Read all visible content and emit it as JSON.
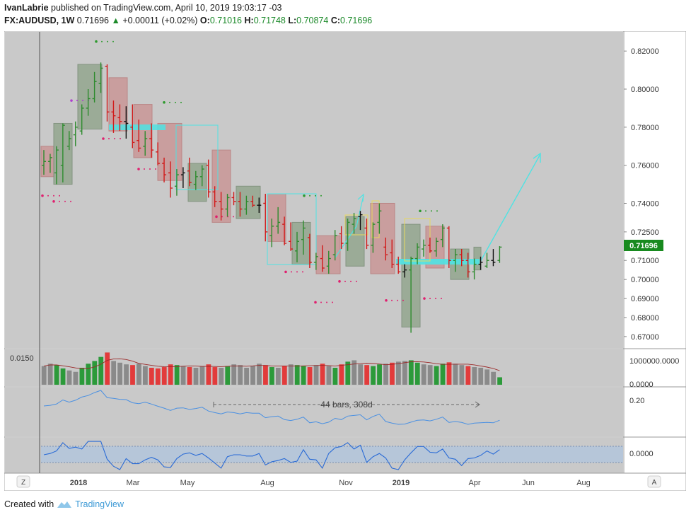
{
  "header": {
    "author": "IvanLabrie",
    "published_text": "published on TradingView.com, April 10, 2019 19:03:17 -03",
    "symbol": "FX:AUDUSD, 1W",
    "price": "0.71696",
    "change": "+0.00011 (+0.02%)",
    "o_label": "O:",
    "o_value": "0.71016",
    "h_label": "H:",
    "h_value": "0.71748",
    "l_label": "L:",
    "l_value": "0.70874",
    "c_label": "C:",
    "c_value": "0.71696"
  },
  "price_axis": {
    "ticks": [
      "0.82000",
      "0.80000",
      "0.78000",
      "0.76000",
      "0.74000",
      "0.72500",
      "0.71000",
      "0.70000",
      "0.69000",
      "0.68000",
      "0.67000"
    ],
    "last_price_label": "0.71696"
  },
  "volume_pane": {
    "left_label": "0.0150",
    "ticks": [
      "1000000.0000",
      "0.0000"
    ]
  },
  "indicator1": {
    "tick": "0.20",
    "measure_label": "44 bars, 308d"
  },
  "indicator2": {
    "tick": "0.0000"
  },
  "time_axis": {
    "labels": [
      "2018",
      "Mar",
      "May",
      "Aug",
      "Nov",
      "2019",
      "Apr",
      "Jun",
      "Aug"
    ],
    "left_button": "Z",
    "right_button": "A"
  },
  "footer": {
    "created_with": "Created with",
    "brand": "TradingView"
  },
  "colors": {
    "background": "#c9c9c9",
    "up_candle": "#2e8b2e",
    "down_candle": "#d11a1a",
    "neutral_candle": "#111111",
    "buy_box": "#97a892",
    "sell_box": "#c99a9a",
    "zone": "#4fe3e3",
    "last_price": "#188a1f",
    "volume_up": "#2c9a3a",
    "volume_down": "#e23b3b",
    "volume_neutral": "#8a8a8a"
  },
  "chart_data": {
    "type": "candlestick",
    "title": "FX:AUDUSD, 1W",
    "y_range": [
      0.6655,
      0.8275
    ],
    "candles": [
      {
        "o": 0.76,
        "h": 0.768,
        "l": 0.755,
        "c": 0.762
      },
      {
        "o": 0.762,
        "h": 0.766,
        "l": 0.756,
        "c": 0.764
      },
      {
        "o": 0.756,
        "h": 0.77,
        "l": 0.75,
        "c": 0.768
      },
      {
        "o": 0.76,
        "h": 0.782,
        "l": 0.751,
        "c": 0.781
      },
      {
        "o": 0.77,
        "h": 0.778,
        "l": 0.768,
        "c": 0.774
      },
      {
        "o": 0.776,
        "h": 0.783,
        "l": 0.77,
        "c": 0.78
      },
      {
        "o": 0.778,
        "h": 0.792,
        "l": 0.776,
        "c": 0.79
      },
      {
        "o": 0.79,
        "h": 0.8,
        "l": 0.786,
        "c": 0.795
      },
      {
        "o": 0.795,
        "h": 0.809,
        "l": 0.793,
        "c": 0.804
      },
      {
        "o": 0.803,
        "h": 0.814,
        "l": 0.798,
        "c": 0.811
      },
      {
        "o": 0.812,
        "h": 0.813,
        "l": 0.783,
        "c": 0.788
      },
      {
        "o": 0.788,
        "h": 0.794,
        "l": 0.777,
        "c": 0.786
      },
      {
        "o": 0.785,
        "h": 0.792,
        "l": 0.778,
        "c": 0.783
      },
      {
        "o": 0.783,
        "h": 0.791,
        "l": 0.774,
        "c": 0.782
      },
      {
        "o": 0.78,
        "h": 0.792,
        "l": 0.769,
        "c": 0.772
      },
      {
        "o": 0.773,
        "h": 0.784,
        "l": 0.767,
        "c": 0.769
      },
      {
        "o": 0.77,
        "h": 0.778,
        "l": 0.765,
        "c": 0.774
      },
      {
        "o": 0.774,
        "h": 0.782,
        "l": 0.764,
        "c": 0.768
      },
      {
        "o": 0.767,
        "h": 0.772,
        "l": 0.76,
        "c": 0.761
      },
      {
        "o": 0.761,
        "h": 0.764,
        "l": 0.751,
        "c": 0.755
      },
      {
        "o": 0.756,
        "h": 0.762,
        "l": 0.743,
        "c": 0.748
      },
      {
        "o": 0.749,
        "h": 0.758,
        "l": 0.744,
        "c": 0.755
      },
      {
        "o": 0.755,
        "h": 0.759,
        "l": 0.748,
        "c": 0.756
      },
      {
        "o": 0.757,
        "h": 0.764,
        "l": 0.749,
        "c": 0.751
      },
      {
        "o": 0.75,
        "h": 0.757,
        "l": 0.747,
        "c": 0.754
      },
      {
        "o": 0.754,
        "h": 0.76,
        "l": 0.749,
        "c": 0.758
      },
      {
        "o": 0.76,
        "h": 0.763,
        "l": 0.743,
        "c": 0.746
      },
      {
        "o": 0.746,
        "h": 0.749,
        "l": 0.738,
        "c": 0.741
      },
      {
        "o": 0.741,
        "h": 0.746,
        "l": 0.731,
        "c": 0.737
      },
      {
        "o": 0.737,
        "h": 0.745,
        "l": 0.733,
        "c": 0.743
      },
      {
        "o": 0.743,
        "h": 0.746,
        "l": 0.739,
        "c": 0.741
      },
      {
        "o": 0.741,
        "h": 0.746,
        "l": 0.733,
        "c": 0.737
      },
      {
        "o": 0.737,
        "h": 0.744,
        "l": 0.734,
        "c": 0.741
      },
      {
        "o": 0.741,
        "h": 0.744,
        "l": 0.738,
        "c": 0.739
      },
      {
        "o": 0.739,
        "h": 0.743,
        "l": 0.735,
        "c": 0.739
      },
      {
        "o": 0.74,
        "h": 0.745,
        "l": 0.72,
        "c": 0.725
      },
      {
        "o": 0.723,
        "h": 0.732,
        "l": 0.717,
        "c": 0.728
      },
      {
        "o": 0.728,
        "h": 0.738,
        "l": 0.724,
        "c": 0.73
      },
      {
        "o": 0.729,
        "h": 0.733,
        "l": 0.718,
        "c": 0.719
      },
      {
        "o": 0.72,
        "h": 0.73,
        "l": 0.715,
        "c": 0.716
      },
      {
        "o": 0.715,
        "h": 0.725,
        "l": 0.709,
        "c": 0.72
      },
      {
        "o": 0.721,
        "h": 0.731,
        "l": 0.713,
        "c": 0.727
      },
      {
        "o": 0.722,
        "h": 0.724,
        "l": 0.706,
        "c": 0.709
      },
      {
        "o": 0.709,
        "h": 0.714,
        "l": 0.705,
        "c": 0.712
      },
      {
        "o": 0.711,
        "h": 0.718,
        "l": 0.704,
        "c": 0.706
      },
      {
        "o": 0.707,
        "h": 0.715,
        "l": 0.703,
        "c": 0.711
      },
      {
        "o": 0.713,
        "h": 0.726,
        "l": 0.71,
        "c": 0.723
      },
      {
        "o": 0.724,
        "h": 0.728,
        "l": 0.716,
        "c": 0.719
      },
      {
        "o": 0.719,
        "h": 0.732,
        "l": 0.715,
        "c": 0.73
      },
      {
        "o": 0.729,
        "h": 0.735,
        "l": 0.724,
        "c": 0.732
      },
      {
        "o": 0.733,
        "h": 0.736,
        "l": 0.726,
        "c": 0.734
      },
      {
        "o": 0.727,
        "h": 0.732,
        "l": 0.716,
        "c": 0.718
      },
      {
        "o": 0.718,
        "h": 0.73,
        "l": 0.714,
        "c": 0.729
      },
      {
        "o": 0.73,
        "h": 0.74,
        "l": 0.724,
        "c": 0.736
      },
      {
        "o": 0.717,
        "h": 0.722,
        "l": 0.71,
        "c": 0.713
      },
      {
        "o": 0.714,
        "h": 0.721,
        "l": 0.706,
        "c": 0.708
      },
      {
        "o": 0.708,
        "h": 0.712,
        "l": 0.703,
        "c": 0.704
      },
      {
        "o": 0.704,
        "h": 0.708,
        "l": 0.701,
        "c": 0.705
      },
      {
        "o": 0.705,
        "h": 0.712,
        "l": 0.672,
        "c": 0.711
      },
      {
        "o": 0.711,
        "h": 0.719,
        "l": 0.708,
        "c": 0.717
      },
      {
        "o": 0.716,
        "h": 0.721,
        "l": 0.712,
        "c": 0.718
      },
      {
        "o": 0.718,
        "h": 0.722,
        "l": 0.714,
        "c": 0.715
      },
      {
        "o": 0.715,
        "h": 0.722,
        "l": 0.712,
        "c": 0.72
      },
      {
        "o": 0.721,
        "h": 0.729,
        "l": 0.717,
        "c": 0.727
      },
      {
        "o": 0.727,
        "h": 0.728,
        "l": 0.706,
        "c": 0.71
      },
      {
        "o": 0.71,
        "h": 0.716,
        "l": 0.704,
        "c": 0.713
      },
      {
        "o": 0.713,
        "h": 0.716,
        "l": 0.707,
        "c": 0.71
      },
      {
        "o": 0.71,
        "h": 0.714,
        "l": 0.701,
        "c": 0.704
      },
      {
        "o": 0.704,
        "h": 0.711,
        "l": 0.7,
        "c": 0.708
      },
      {
        "o": 0.708,
        "h": 0.712,
        "l": 0.705,
        "c": 0.709
      },
      {
        "o": 0.707,
        "h": 0.714,
        "l": 0.706,
        "c": 0.71
      },
      {
        "o": 0.71,
        "h": 0.716,
        "l": 0.707,
        "c": 0.709
      },
      {
        "o": 0.71,
        "h": 0.7175,
        "l": 0.7087,
        "c": 0.717
      }
    ],
    "volume": [
      0.55,
      0.62,
      0.58,
      0.48,
      0.42,
      0.38,
      0.5,
      0.62,
      0.7,
      0.82,
      0.95,
      0.7,
      0.65,
      0.6,
      0.58,
      0.62,
      0.55,
      0.5,
      0.48,
      0.52,
      0.6,
      0.58,
      0.55,
      0.52,
      0.5,
      0.55,
      0.6,
      0.52,
      0.5,
      0.55,
      0.6,
      0.58,
      0.5,
      0.55,
      0.62,
      0.58,
      0.52,
      0.5,
      0.55,
      0.6,
      0.58,
      0.55,
      0.52,
      0.58,
      0.62,
      0.55,
      0.5,
      0.6,
      0.68,
      0.72,
      0.6,
      0.58,
      0.55,
      0.6,
      0.62,
      0.65,
      0.68,
      0.7,
      0.72,
      0.65,
      0.6,
      0.58,
      0.55,
      0.62,
      0.66,
      0.62,
      0.58,
      0.55,
      0.52,
      0.5,
      0.45,
      0.38,
      0.22
    ],
    "volume_ticks": [
      0,
      1000000
    ],
    "indicator1_tick": 0.2,
    "indicator2_tick": 0.0
  }
}
